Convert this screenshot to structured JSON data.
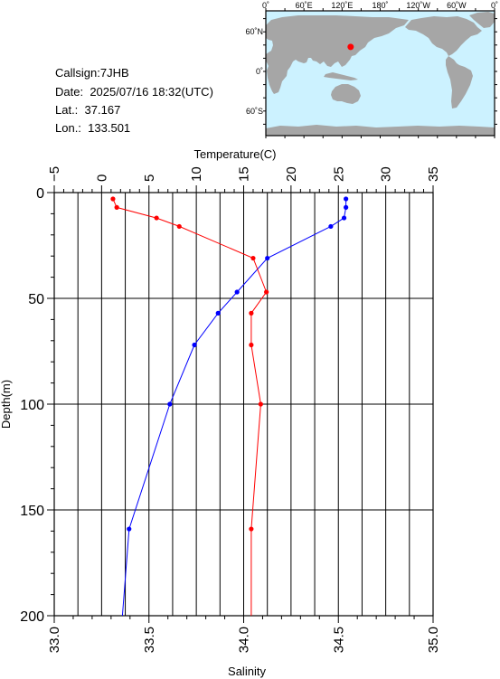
{
  "info": {
    "callsign_label": "Callsign:",
    "callsign": "7JHB",
    "date_label": "Date:",
    "date": "2025/07/16 18:32(UTC)",
    "lat_label": "Lat.:",
    "lat": "37.167",
    "lon_label": "Lon.:",
    "lon": "133.501"
  },
  "map": {
    "lon_ticks": [
      "0˚",
      "60˚E",
      "120˚E",
      "180˚",
      "120˚W",
      "60˚W",
      "0˚"
    ],
    "lat_ticks": [
      "60˚N",
      "0˚",
      "60˚S"
    ],
    "ocean_color": "#ccf2ff",
    "land_color": "#a6a6a6",
    "station_color": "#ff0000",
    "station": {
      "lon": 133.501,
      "lat": 37.167
    }
  },
  "chart_data": {
    "type": "line",
    "top_axis_label": "Temperature(C)",
    "bottom_axis_label": "Salinity",
    "ylabel": "Depth(m)",
    "temperature_range": [
      -5,
      35
    ],
    "temperature_ticks": [
      "−5",
      "0",
      "5",
      "10",
      "15",
      "20",
      "25",
      "30",
      "35"
    ],
    "salinity_range": [
      33.0,
      35.0
    ],
    "salinity_ticks": [
      "33.0",
      "33.5",
      "34.0",
      "34.5",
      "35.0"
    ],
    "depth_range": [
      0,
      200
    ],
    "depth_ticks": [
      "0",
      "50",
      "100",
      "150",
      "200"
    ],
    "grid": true,
    "series": [
      {
        "axis": "temperature",
        "color": "#0000ff",
        "points": [
          {
            "value": 25.8,
            "depth": 3
          },
          {
            "value": 25.8,
            "depth": 7
          },
          {
            "value": 25.6,
            "depth": 12
          },
          {
            "value": 24.2,
            "depth": 16
          },
          {
            "value": 17.5,
            "depth": 31
          },
          {
            "value": 14.3,
            "depth": 47
          },
          {
            "value": 12.3,
            "depth": 57
          },
          {
            "value": 9.8,
            "depth": 72
          },
          {
            "value": 7.2,
            "depth": 100
          },
          {
            "value": 2.9,
            "depth": 159
          },
          {
            "value": 2.2,
            "depth": 200
          }
        ]
      },
      {
        "axis": "salinity",
        "color": "#ff0000",
        "points": [
          {
            "value": 33.31,
            "depth": 3
          },
          {
            "value": 33.33,
            "depth": 7
          },
          {
            "value": 33.54,
            "depth": 12
          },
          {
            "value": 33.66,
            "depth": 16
          },
          {
            "value": 34.05,
            "depth": 31
          },
          {
            "value": 34.12,
            "depth": 47
          },
          {
            "value": 34.04,
            "depth": 57
          },
          {
            "value": 34.04,
            "depth": 72
          },
          {
            "value": 34.09,
            "depth": 100
          },
          {
            "value": 34.04,
            "depth": 159
          },
          {
            "value": 34.04,
            "depth": 200
          }
        ]
      }
    ]
  }
}
